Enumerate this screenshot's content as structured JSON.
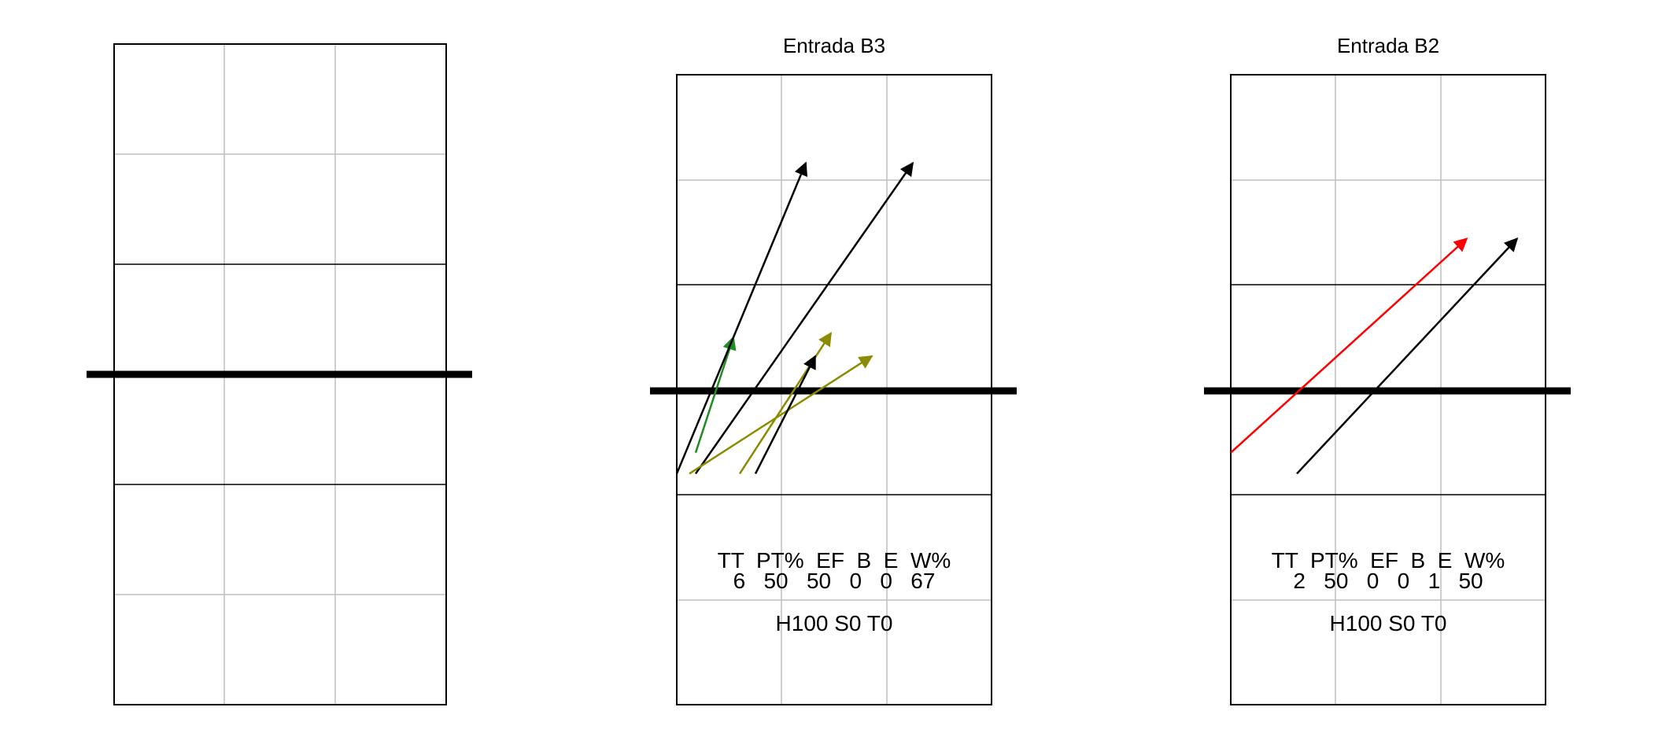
{
  "colors": {
    "court_line": "#000000",
    "grid_line": "#bebebe",
    "arrow_black": "#000000",
    "arrow_green": "#228b22",
    "arrow_olive": "#8b8b00",
    "arrow_red": "#ff0000"
  },
  "panels": [
    {
      "id": "blank",
      "title": "",
      "show_stats": false,
      "arrows": []
    },
    {
      "id": "b3",
      "title": "Entrada B3",
      "show_stats": true,
      "stats": {
        "header": "TT  PT%  EF  B  E  W%",
        "values": "6   50   50   0   0   67",
        "footer": "H100 S0 T0"
      },
      "arrows": [
        {
          "color": "arrow_green",
          "from": [
            0.06,
            1.2
          ],
          "to": [
            0.18,
            1.75
          ]
        },
        {
          "color": "arrow_black",
          "from": [
            0.0,
            1.1
          ],
          "to": [
            0.41,
            2.58
          ]
        },
        {
          "color": "arrow_black",
          "from": [
            0.06,
            1.1
          ],
          "to": [
            0.75,
            2.58
          ]
        },
        {
          "color": "arrow_olive",
          "from": [
            0.2,
            1.1
          ],
          "to": [
            0.49,
            1.77
          ]
        },
        {
          "color": "arrow_olive",
          "from": [
            0.04,
            1.1
          ],
          "to": [
            0.62,
            1.66
          ]
        },
        {
          "color": "arrow_black",
          "from": [
            0.25,
            1.1
          ],
          "to": [
            0.44,
            1.66
          ]
        }
      ]
    },
    {
      "id": "b2",
      "title": "Entrada B2",
      "show_stats": true,
      "stats": {
        "header": "TT  PT%  EF  B  E  W%",
        "values": "2   50   0   0   1   50",
        "footer": "H100 S0 T0"
      },
      "arrows": [
        {
          "color": "arrow_red",
          "from": [
            0.0,
            1.2
          ],
          "to": [
            0.75,
            2.22
          ]
        },
        {
          "color": "arrow_black",
          "from": [
            0.21,
            1.1
          ],
          "to": [
            0.91,
            2.22
          ]
        }
      ]
    }
  ]
}
